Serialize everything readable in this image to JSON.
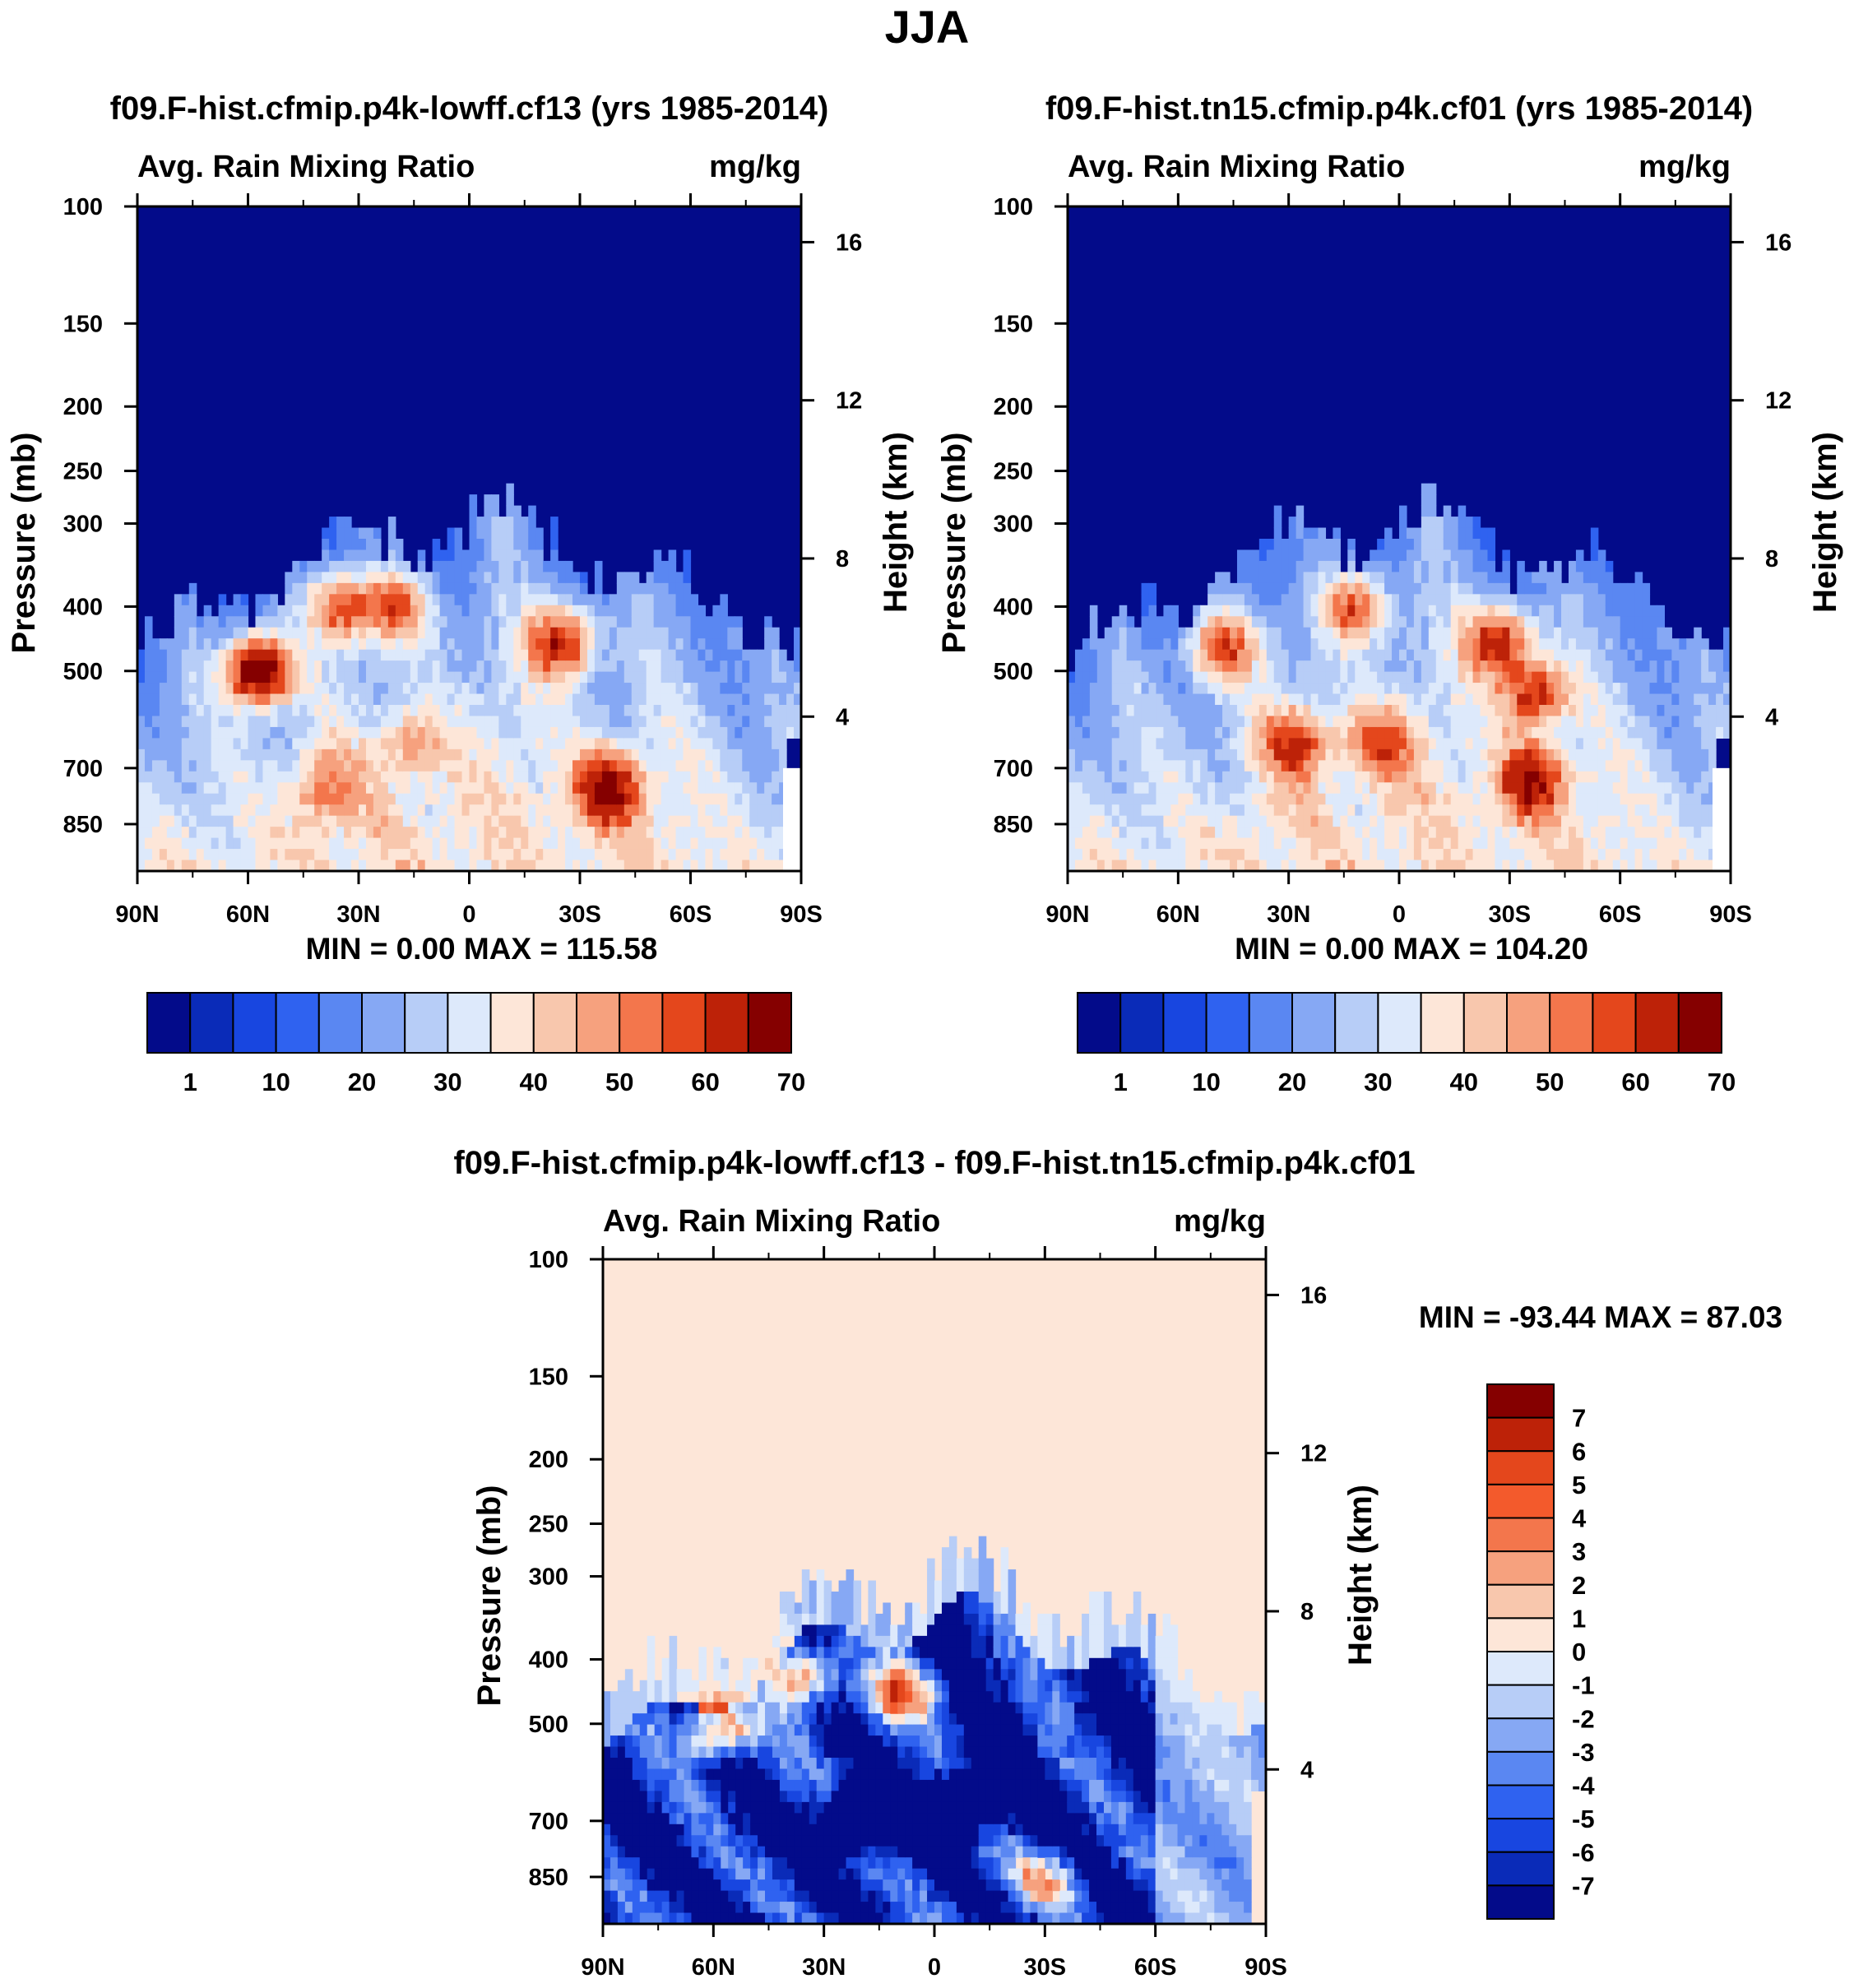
{
  "page_title": "JJA",
  "chart_data": [
    {
      "type": "heatmap",
      "title": "f09.F-hist.cfmip.p4k-lowff.cf13 (yrs 1985-2014)",
      "subtitle_left": "Avg. Rain Mixing Ratio",
      "subtitle_right": "mg/kg",
      "xlabel": "",
      "ylabel": "Pressure (mb)",
      "ylabel_right": "Height (km)",
      "x_ticks": [
        "90N",
        "60N",
        "30N",
        "0",
        "30S",
        "60S",
        "90S"
      ],
      "y_ticks": [
        100,
        150,
        200,
        250,
        300,
        400,
        500,
        700,
        850
      ],
      "y_right_ticks": [
        16,
        12,
        8,
        4
      ],
      "y_scale": "log",
      "ylim": [
        1000,
        100
      ],
      "stats": "MIN =    0.00   MAX = 115.58",
      "colorbar_labels": [
        "1",
        "10",
        "20",
        "30",
        "40",
        "50",
        "60",
        "70"
      ],
      "colorbar_colors": [
        "#030b8a",
        "#0a2bb8",
        "#1846e0",
        "#2f62f0",
        "#5a87f2",
        "#86a8f4",
        "#b7cdf7",
        "#dde9fb",
        "#fde6d8",
        "#f8c7ad",
        "#f6a17e",
        "#f3764c",
        "#e4471c",
        "#bd2208",
        "#850000"
      ],
      "features": [
        {
          "lat": 57,
          "p": 500,
          "value": 80
        },
        {
          "lat": 35,
          "p": 400,
          "value": 55
        },
        {
          "lat": 20,
          "p": 400,
          "value": 50
        },
        {
          "lat": -25,
          "p": 450,
          "value": 62
        },
        {
          "lat": -38,
          "p": 750,
          "value": 65
        },
        {
          "lat": 40,
          "p": 750,
          "value": 40
        },
        {
          "lat": 15,
          "p": 650,
          "value": 38
        }
      ]
    },
    {
      "type": "heatmap",
      "title": "f09.F-hist.tn15.cfmip.p4k.cf01 (yrs 1985-2014)",
      "subtitle_left": "Avg. Rain Mixing Ratio",
      "subtitle_right": "mg/kg",
      "xlabel": "",
      "ylabel": "Pressure (mb)",
      "ylabel_right": "Height (km)",
      "x_ticks": [
        "90N",
        "60N",
        "30N",
        "0",
        "30S",
        "60S",
        "90S"
      ],
      "y_ticks": [
        100,
        150,
        200,
        250,
        300,
        400,
        500,
        700,
        850
      ],
      "y_right_ticks": [
        16,
        12,
        8,
        4
      ],
      "y_scale": "log",
      "ylim": [
        1000,
        100
      ],
      "stats": "MIN =    0.00   MAX = 104.20",
      "colorbar_labels": [
        "1",
        "10",
        "20",
        "30",
        "40",
        "50",
        "60",
        "70"
      ],
      "colorbar_colors": [
        "#030b8a",
        "#0a2bb8",
        "#1846e0",
        "#2f62f0",
        "#5a87f2",
        "#86a8f4",
        "#b7cdf7",
        "#dde9fb",
        "#fde6d8",
        "#f8c7ad",
        "#f6a17e",
        "#f3764c",
        "#e4471c",
        "#bd2208",
        "#850000"
      ],
      "features": [
        {
          "lat": 48,
          "p": 460,
          "value": 55
        },
        {
          "lat": 12,
          "p": 400,
          "value": 52
        },
        {
          "lat": -27,
          "p": 450,
          "value": 62
        },
        {
          "lat": -37,
          "p": 540,
          "value": 58
        },
        {
          "lat": -36,
          "p": 730,
          "value": 62
        },
        {
          "lat": 28,
          "p": 640,
          "value": 50
        },
        {
          "lat": 5,
          "p": 640,
          "value": 48
        }
      ]
    },
    {
      "type": "heatmap",
      "title": "f09.F-hist.cfmip.p4k-lowff.cf13 - f09.F-hist.tn15.cfmip.p4k.cf01",
      "subtitle_left": "Avg. Rain Mixing Ratio",
      "subtitle_right": "mg/kg",
      "xlabel": "",
      "ylabel": "Pressure (mb)",
      "ylabel_right": "Height (km)",
      "x_ticks": [
        "90N",
        "60N",
        "30N",
        "0",
        "30S",
        "60S",
        "90S"
      ],
      "y_ticks": [
        100,
        150,
        200,
        250,
        300,
        400,
        500,
        700,
        850
      ],
      "y_right_ticks": [
        16,
        12,
        8,
        4
      ],
      "y_scale": "log",
      "ylim": [
        1000,
        100
      ],
      "stats": "MIN = -93.44   MAX =  87.03",
      "colorbar_labels": [
        "7",
        "6",
        "5",
        "4",
        "3",
        "2",
        "1",
        "0",
        "-1",
        "-2",
        "-3",
        "-4",
        "-5",
        "-6",
        "-7"
      ],
      "colorbar_colors": [
        "#850000",
        "#bd2208",
        "#e4471c",
        "#f35a2c",
        "#f3764c",
        "#f6a17e",
        "#f8c7ad",
        "#fde6d8",
        "#dde9fb",
        "#b7cdf7",
        "#86a8f4",
        "#5a87f2",
        "#2f62f0",
        "#1846e0",
        "#0a2bb8",
        "#030b8a"
      ],
      "features": [
        {
          "lat": 58,
          "p": 510,
          "value": 8
        },
        {
          "lat": 35,
          "p": 420,
          "value": 7
        },
        {
          "lat": 10,
          "p": 450,
          "value": 7
        },
        {
          "lat": -30,
          "p": 860,
          "value": 5
        },
        {
          "lat": 20,
          "p": 700,
          "value": -8
        },
        {
          "lat": -10,
          "p": 650,
          "value": -8
        }
      ]
    }
  ]
}
